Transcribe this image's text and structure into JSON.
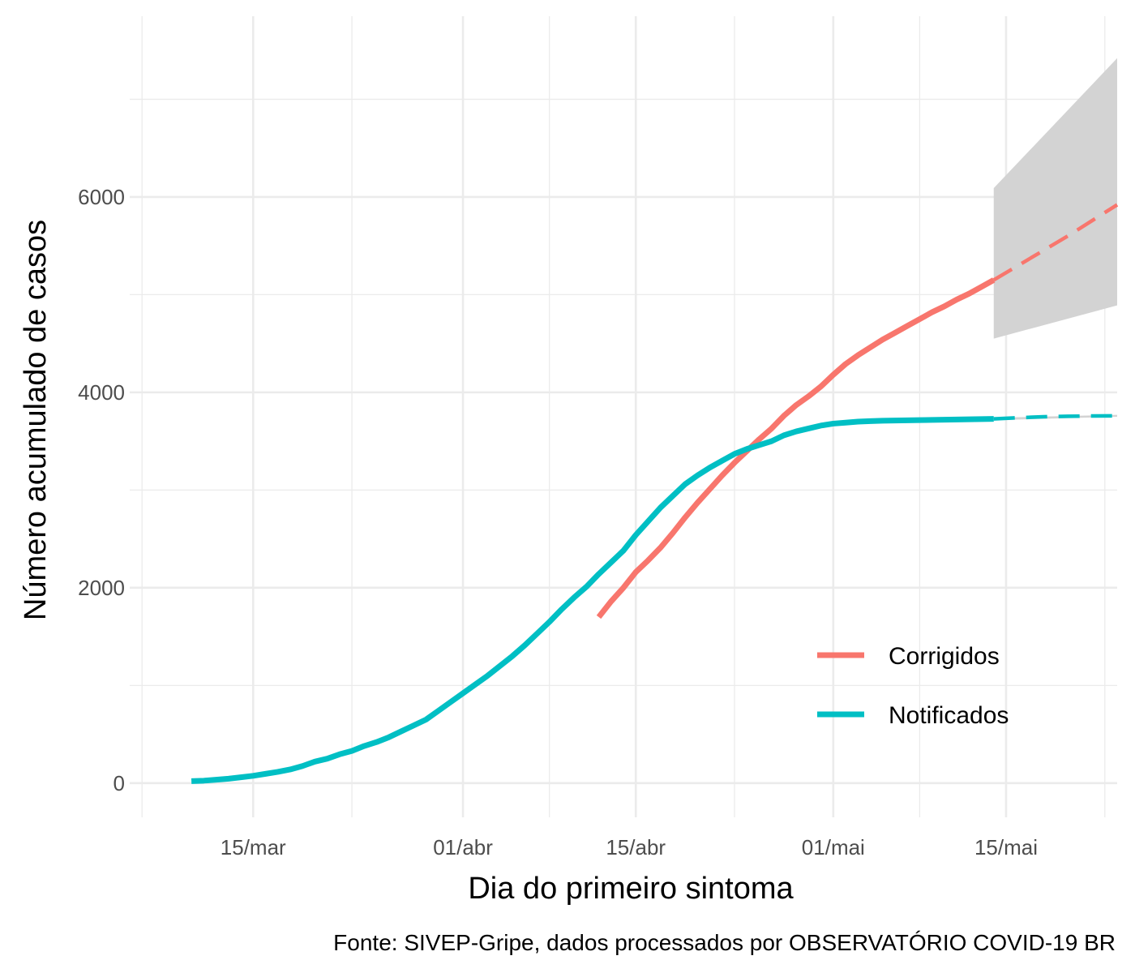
{
  "chart_data": {
    "type": "line",
    "xlabel": "Dia do primeiro sintoma",
    "ylabel": "Número acumulado de casos",
    "caption": "Fonte: SIVEP-Gripe, dados processados por OBSERVATÓRIO COVID-19 BR",
    "x_range": [
      "2020-03-05",
      "2020-05-24"
    ],
    "ylim": [
      -350,
      7850
    ],
    "x_ticks": [
      {
        "date": "2020-03-15",
        "label": "15/mar"
      },
      {
        "date": "2020-04-01",
        "label": "01/abr"
      },
      {
        "date": "2020-04-15",
        "label": "15/abr"
      },
      {
        "date": "2020-05-01",
        "label": "01/mai"
      },
      {
        "date": "2020-05-15",
        "label": "15/mai"
      }
    ],
    "x_minor_ticks": [
      "2020-03-06",
      "2020-03-23",
      "2020-04-08",
      "2020-04-23",
      "2020-05-08",
      "2020-05-23"
    ],
    "y_ticks": [
      {
        "value": 0,
        "label": "0"
      },
      {
        "value": 2000,
        "label": "2000"
      },
      {
        "value": 4000,
        "label": "4000"
      },
      {
        "value": 6000,
        "label": "6000"
      }
    ],
    "y_minor_ticks": [
      1000,
      3000,
      5000,
      7000
    ],
    "grid": true,
    "legend": {
      "position": "bottom-right",
      "entries": [
        {
          "label": "Corrigidos",
          "color": "#F8766D"
        },
        {
          "label": "Notificados",
          "color": "#00BFC4"
        }
      ]
    },
    "series": [
      {
        "name": "Corrigidos",
        "color": "#F8766D",
        "x": [
          "2020-04-12",
          "2020-04-13",
          "2020-04-14",
          "2020-04-15",
          "2020-04-16",
          "2020-04-17",
          "2020-04-18",
          "2020-04-19",
          "2020-04-20",
          "2020-04-21",
          "2020-04-22",
          "2020-04-23",
          "2020-04-24",
          "2020-04-25",
          "2020-04-26",
          "2020-04-27",
          "2020-04-28",
          "2020-04-29",
          "2020-04-30",
          "2020-05-01",
          "2020-05-02",
          "2020-05-03",
          "2020-05-04",
          "2020-05-05",
          "2020-05-06",
          "2020-05-07",
          "2020-05-08",
          "2020-05-09",
          "2020-05-10",
          "2020-05-11",
          "2020-05-12",
          "2020-05-13",
          "2020-05-14"
        ],
        "y": [
          1700,
          1860,
          2000,
          2160,
          2280,
          2410,
          2560,
          2720,
          2870,
          3010,
          3150,
          3280,
          3400,
          3520,
          3630,
          3760,
          3870,
          3960,
          4060,
          4180,
          4290,
          4380,
          4460,
          4540,
          4610,
          4680,
          4750,
          4820,
          4880,
          4950,
          5010,
          5080,
          5150
        ]
      },
      {
        "name": "Corrigidos (projeção)",
        "color": "#F8766D",
        "dashed": true,
        "x": [
          "2020-05-14",
          "2020-05-16",
          "2020-05-18",
          "2020-05-20",
          "2020-05-22",
          "2020-05-24"
        ],
        "y": [
          5150,
          5300,
          5450,
          5600,
          5760,
          5920
        ]
      },
      {
        "name": "Notificados",
        "color": "#00BFC4",
        "x": [
          "2020-03-10",
          "2020-03-11",
          "2020-03-12",
          "2020-03-13",
          "2020-03-14",
          "2020-03-15",
          "2020-03-16",
          "2020-03-17",
          "2020-03-18",
          "2020-03-19",
          "2020-03-20",
          "2020-03-21",
          "2020-03-22",
          "2020-03-23",
          "2020-03-24",
          "2020-03-25",
          "2020-03-26",
          "2020-03-27",
          "2020-03-28",
          "2020-03-29",
          "2020-03-30",
          "2020-03-31",
          "2020-04-01",
          "2020-04-02",
          "2020-04-03",
          "2020-04-04",
          "2020-04-05",
          "2020-04-06",
          "2020-04-07",
          "2020-04-08",
          "2020-04-09",
          "2020-04-10",
          "2020-04-11",
          "2020-04-12",
          "2020-04-13",
          "2020-04-14",
          "2020-04-15",
          "2020-04-16",
          "2020-04-17",
          "2020-04-18",
          "2020-04-19",
          "2020-04-20",
          "2020-04-21",
          "2020-04-22",
          "2020-04-23",
          "2020-04-24",
          "2020-04-25",
          "2020-04-26",
          "2020-04-27",
          "2020-04-28",
          "2020-04-29",
          "2020-04-30",
          "2020-05-01",
          "2020-05-02",
          "2020-05-03",
          "2020-05-04",
          "2020-05-05",
          "2020-05-06",
          "2020-05-07",
          "2020-05-08",
          "2020-05-09",
          "2020-05-10",
          "2020-05-11",
          "2020-05-12",
          "2020-05-13",
          "2020-05-14"
        ],
        "y": [
          20,
          25,
          35,
          45,
          60,
          75,
          95,
          115,
          140,
          175,
          220,
          250,
          295,
          330,
          380,
          420,
          470,
          530,
          590,
          650,
          740,
          830,
          920,
          1010,
          1100,
          1200,
          1300,
          1410,
          1530,
          1650,
          1780,
          1900,
          2010,
          2140,
          2260,
          2380,
          2540,
          2680,
          2820,
          2940,
          3060,
          3150,
          3230,
          3300,
          3370,
          3420,
          3460,
          3500,
          3560,
          3600,
          3630,
          3660,
          3680,
          3690,
          3700,
          3705,
          3710,
          3712,
          3714,
          3716,
          3718,
          3720,
          3722,
          3724,
          3726,
          3728
        ]
      },
      {
        "name": "Notificados (projeção)",
        "color": "#00BFC4",
        "dashed": true,
        "x": [
          "2020-05-14",
          "2020-05-16",
          "2020-05-18",
          "2020-05-20",
          "2020-05-22",
          "2020-05-24"
        ],
        "y": [
          3728,
          3740,
          3750,
          3755,
          3758,
          3760
        ]
      }
    ],
    "bands": [
      {
        "name": "Corrigidos intervalo",
        "color": "#d3d3d3",
        "x": [
          "2020-05-14",
          "2020-05-24"
        ],
        "lower": [
          4550,
          4890
        ],
        "upper": [
          6090,
          7420
        ]
      },
      {
        "name": "Notificados intervalo",
        "color": "#d3d3d3",
        "x": [
          "2020-05-14",
          "2020-05-24"
        ],
        "lower": [
          3715,
          3750
        ],
        "upper": [
          3740,
          3770
        ]
      }
    ]
  }
}
